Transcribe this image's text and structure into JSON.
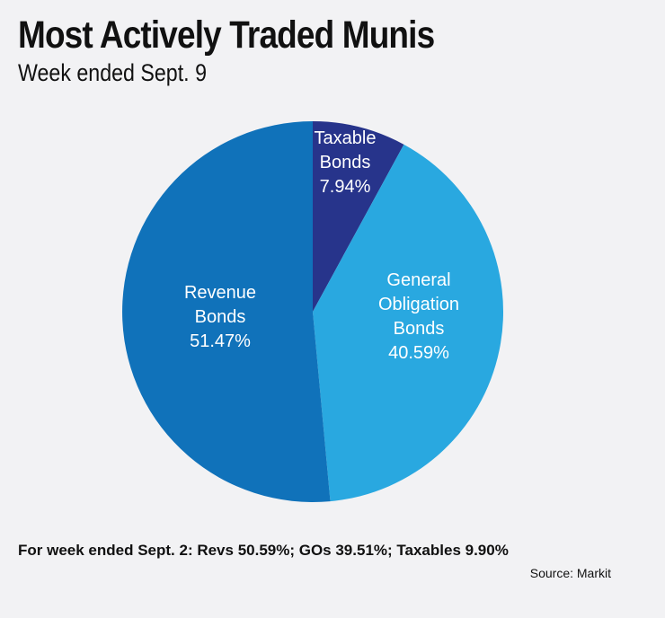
{
  "chart_data": {
    "type": "pie",
    "title": "Most Actively Traded Munis",
    "subtitle": "Week ended Sept. 9",
    "slices": [
      {
        "lines": [
          "Taxable",
          "Bonds"
        ],
        "value": 7.94,
        "value_label": "7.94%",
        "color": "#27348b"
      },
      {
        "lines": [
          "General",
          "Obligation",
          "Bonds"
        ],
        "value": 40.59,
        "value_label": "40.59%",
        "color": "#29a8e0"
      },
      {
        "lines": [
          "Revenue",
          "Bonds"
        ],
        "value": 51.47,
        "value_label": "51.47%",
        "color": "#1072ba"
      }
    ],
    "start": "12 o'clock",
    "direction": "clockwise"
  },
  "footnote": "For week ended Sept. 2: Revs 50.59%; GOs 39.51%; Taxables 9.90%",
  "source": "Source: Markit"
}
